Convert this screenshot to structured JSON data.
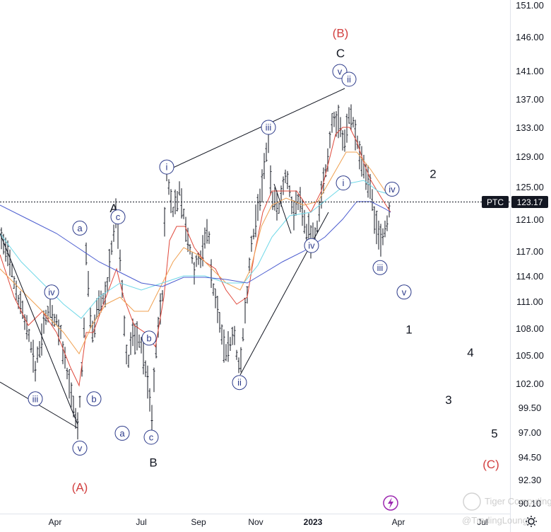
{
  "chart_data": {
    "type": "candlestick",
    "symbol": "PTC",
    "last_price": "123.17",
    "ylim": [
      90.1,
      151.0
    ],
    "y_ticks": [
      "151.00",
      "146.00",
      "141.00",
      "137.00",
      "133.00",
      "129.00",
      "125.00",
      "121.00",
      "117.00",
      "114.00",
      "111.00",
      "108.00",
      "105.00",
      "102.00",
      "99.50",
      "97.00",
      "94.50",
      "92.30",
      "90.10"
    ],
    "x_ticks": [
      {
        "label": "Apr",
        "bold": false
      },
      {
        "label": "Jul",
        "bold": false
      },
      {
        "label": "Sep",
        "bold": false
      },
      {
        "label": "Nov",
        "bold": false
      },
      {
        "label": "2023",
        "bold": true
      },
      {
        "label": "Apr",
        "bold": false
      },
      {
        "label": "Jul",
        "bold": false
      }
    ],
    "wave_labels": [
      {
        "text": "(B)",
        "style": "red",
        "price": 146.6
      },
      {
        "text": "C",
        "style": "big",
        "price": 143.6
      },
      {
        "text": "A",
        "style": "big",
        "price": 122.4
      },
      {
        "text": "2",
        "style": "big",
        "price": 126.7
      },
      {
        "text": "1",
        "style": "big",
        "price": 107.9
      },
      {
        "text": "4",
        "style": "big",
        "price": 105.3
      },
      {
        "text": "3",
        "style": "big",
        "price": 100.3
      },
      {
        "text": "5",
        "style": "big",
        "price": 96.9
      },
      {
        "text": "(C)",
        "style": "red",
        "price": 93.8
      },
      {
        "text": "C",
        "style": "big",
        "price": 95.6
      },
      {
        "text": "B",
        "style": "big",
        "price": 94.0
      },
      {
        "text": "(A)",
        "style": "red",
        "price": 91.6
      }
    ],
    "circle_labels": [
      {
        "text": "v",
        "price": 140.9
      },
      {
        "text": "ii",
        "price": 139.8
      },
      {
        "text": "iii",
        "price": 133.0
      },
      {
        "text": "i",
        "price": 127.6
      },
      {
        "text": "i",
        "price": 125.5
      },
      {
        "text": "iv",
        "price": 124.7
      },
      {
        "text": "a",
        "price": 119.9
      },
      {
        "text": "c",
        "price": 121.3
      },
      {
        "text": "iv",
        "price": 117.7
      },
      {
        "text": "iii",
        "price": 115.0
      },
      {
        "text": "iv",
        "price": 112.1
      },
      {
        "text": "v",
        "price": 112.1
      },
      {
        "text": "b",
        "price": 106.9
      },
      {
        "text": "ii",
        "price": 102.1
      },
      {
        "text": "iii",
        "price": 100.4
      },
      {
        "text": "b",
        "price": 100.4
      },
      {
        "text": "a",
        "price": 96.9
      },
      {
        "text": "c",
        "price": 96.5
      },
      {
        "text": "v",
        "price": 95.4
      }
    ],
    "colors": {
      "price_bars": "#131722",
      "ma_fast": "#e0483b",
      "ma_orange": "#f0a050",
      "ma_cyan": "#6fd8e8",
      "ma_blue": "#4a5bcf",
      "wave_red": "#d23f3f",
      "circle_label": "#2c3a8a",
      "price_tag_bg": "#131722"
    }
  },
  "watermark": {
    "brand": "Tiger Computing",
    "author": "@TradingLounge"
  },
  "icons": {
    "lightning": "lightning-icon",
    "settings": "gear-icon"
  }
}
